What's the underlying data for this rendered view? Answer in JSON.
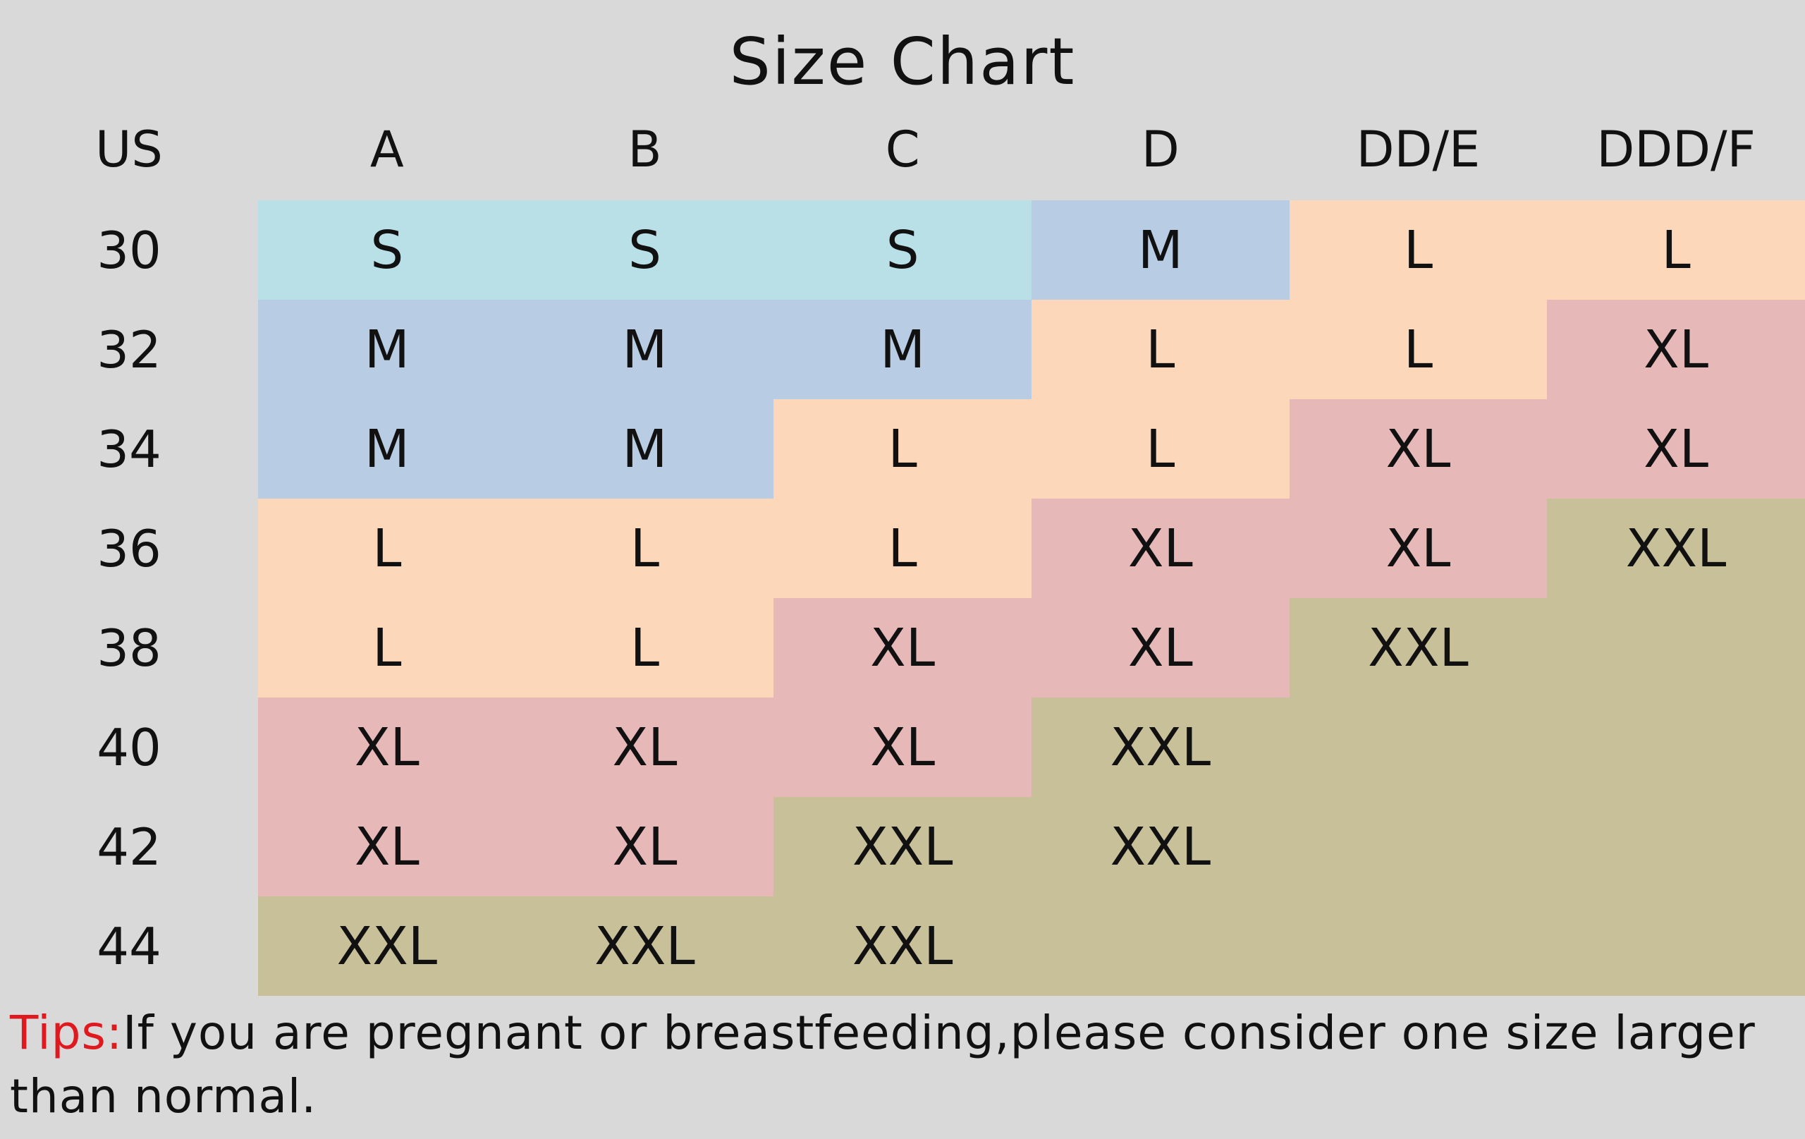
{
  "title": "Size Chart",
  "header": {
    "corner": "US",
    "cups": [
      "A",
      "B",
      "C",
      "D",
      "DD/E",
      "DDD/F"
    ]
  },
  "colors": {
    "S": "#b9dfe7",
    "M": "#b8cce4",
    "L": "#fdd7b9",
    "XL": "#e6b8b8",
    "XXL": "#c8c099"
  },
  "rows": [
    {
      "band": "30",
      "cells": [
        {
          "size": "S",
          "label": "S"
        },
        {
          "size": "S",
          "label": "S"
        },
        {
          "size": "S",
          "label": "S"
        },
        {
          "size": "M",
          "label": "M"
        },
        {
          "size": "L",
          "label": "L"
        },
        {
          "size": "L",
          "label": "L"
        }
      ]
    },
    {
      "band": "32",
      "cells": [
        {
          "size": "M",
          "label": "M"
        },
        {
          "size": "M",
          "label": "M"
        },
        {
          "size": "M",
          "label": "M"
        },
        {
          "size": "L",
          "label": "L"
        },
        {
          "size": "L",
          "label": "L"
        },
        {
          "size": "XL",
          "label": "XL"
        }
      ]
    },
    {
      "band": "34",
      "cells": [
        {
          "size": "M",
          "label": "M"
        },
        {
          "size": "M",
          "label": "M"
        },
        {
          "size": "L",
          "label": "L"
        },
        {
          "size": "L",
          "label": "L"
        },
        {
          "size": "XL",
          "label": "XL"
        },
        {
          "size": "XL",
          "label": "XL"
        }
      ]
    },
    {
      "band": "36",
      "cells": [
        {
          "size": "L",
          "label": "L"
        },
        {
          "size": "L",
          "label": "L"
        },
        {
          "size": "L",
          "label": "L"
        },
        {
          "size": "XL",
          "label": "XL"
        },
        {
          "size": "XL",
          "label": "XL"
        },
        {
          "size": "XXL",
          "label": "XXL"
        }
      ]
    },
    {
      "band": "38",
      "cells": [
        {
          "size": "L",
          "label": "L"
        },
        {
          "size": "L",
          "label": "L"
        },
        {
          "size": "XL",
          "label": "XL"
        },
        {
          "size": "XL",
          "label": "XL"
        },
        {
          "size": "XXL",
          "label": "XXL"
        },
        {
          "size": "XXL",
          "label": ""
        }
      ]
    },
    {
      "band": "40",
      "cells": [
        {
          "size": "XL",
          "label": "XL"
        },
        {
          "size": "XL",
          "label": "XL"
        },
        {
          "size": "XL",
          "label": "XL"
        },
        {
          "size": "XXL",
          "label": "XXL"
        },
        {
          "size": "XXL",
          "label": ""
        },
        {
          "size": "XXL",
          "label": ""
        }
      ]
    },
    {
      "band": "42",
      "cells": [
        {
          "size": "XL",
          "label": "XL"
        },
        {
          "size": "XL",
          "label": "XL"
        },
        {
          "size": "XXL",
          "label": "XXL"
        },
        {
          "size": "XXL",
          "label": "XXL"
        },
        {
          "size": "XXL",
          "label": ""
        },
        {
          "size": "XXL",
          "label": ""
        }
      ]
    },
    {
      "band": "44",
      "cells": [
        {
          "size": "XXL",
          "label": "XXL"
        },
        {
          "size": "XXL",
          "label": "XXL"
        },
        {
          "size": "XXL",
          "label": "XXL"
        },
        {
          "size": "XXL",
          "label": ""
        },
        {
          "size": "XXL",
          "label": ""
        },
        {
          "size": "XXL",
          "label": ""
        }
      ]
    }
  ],
  "tips": {
    "label": "Tips:",
    "text": "If you are pregnant or breastfeeding,please consider one size larger than normal."
  }
}
